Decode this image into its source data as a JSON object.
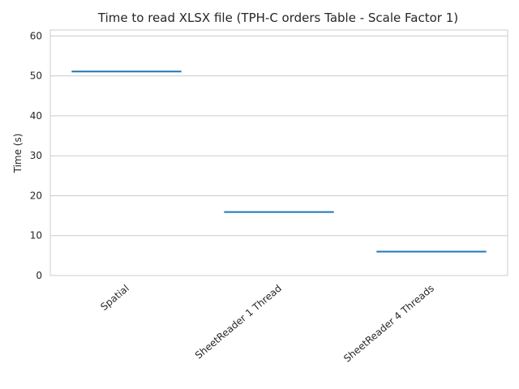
{
  "chart_data": {
    "type": "bar",
    "title": "Time to read XLSX file (TPH-C orders Table - Scale Factor 1)",
    "xlabel": "",
    "ylabel": "Time (s)",
    "categories": [
      "Spatial",
      "SheetReader 1 Thread",
      "SheetReader 4 Threads"
    ],
    "values": [
      51.1,
      15.9,
      6.0
    ],
    "ylim": [
      0,
      61.5
    ],
    "yticks": [
      0,
      10,
      20,
      30,
      40,
      50,
      60
    ],
    "grid": "horizontal",
    "color": "#1f77b4"
  }
}
